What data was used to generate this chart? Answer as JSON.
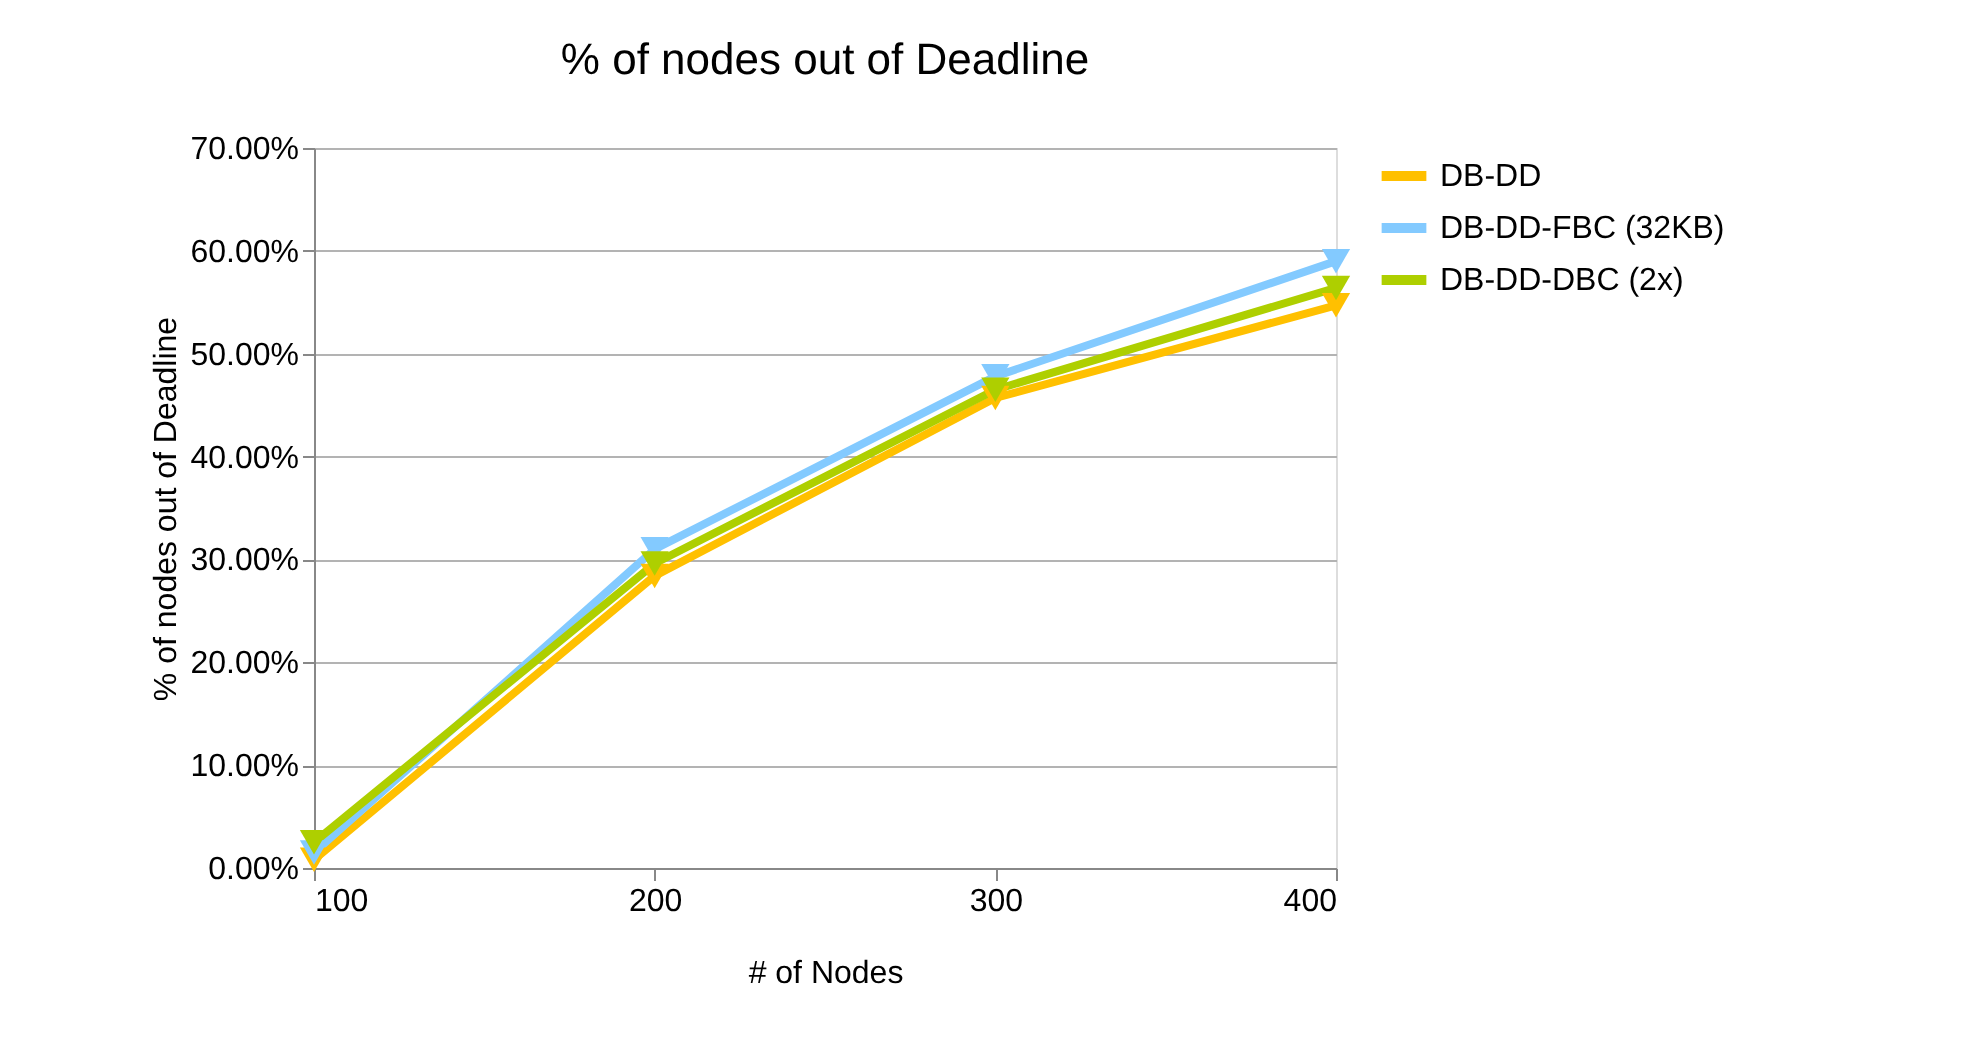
{
  "chart_data": {
    "type": "line",
    "title": "% of nodes out of Deadline",
    "xlabel": "# of Nodes",
    "ylabel": "% of nodes out of Deadline",
    "x": [
      100,
      200,
      300,
      400
    ],
    "xlim": [
      100,
      400
    ],
    "xticks": [
      100,
      200,
      300,
      400
    ],
    "ylim": [
      0,
      70
    ],
    "yticks": [
      {
        "value": 0,
        "label": "0.00%"
      },
      {
        "value": 10,
        "label": "10.00%"
      },
      {
        "value": 20,
        "label": "20.00%"
      },
      {
        "value": 30,
        "label": "30.00%"
      },
      {
        "value": 40,
        "label": "40.00%"
      },
      {
        "value": 50,
        "label": "50.00%"
      },
      {
        "value": 60,
        "label": "60.00%"
      },
      {
        "value": 70,
        "label": "70.00%"
      }
    ],
    "series": [
      {
        "name": "DB-DD",
        "color": "#ffc000",
        "values": [
          0.8,
          28.4,
          45.7,
          54.7
        ]
      },
      {
        "name": "DB-DD-FBC (32KB)",
        "color": "#83caff",
        "values": [
          1.5,
          31,
          47.8,
          59
        ]
      },
      {
        "name": "DB-DD-DBC (2x)",
        "color": "#aecf00",
        "values": [
          2.5,
          29.6,
          46.5,
          56.4
        ]
      }
    ],
    "grid": "y",
    "legend": "right",
    "marker": "triangle",
    "line_style": "solid"
  }
}
